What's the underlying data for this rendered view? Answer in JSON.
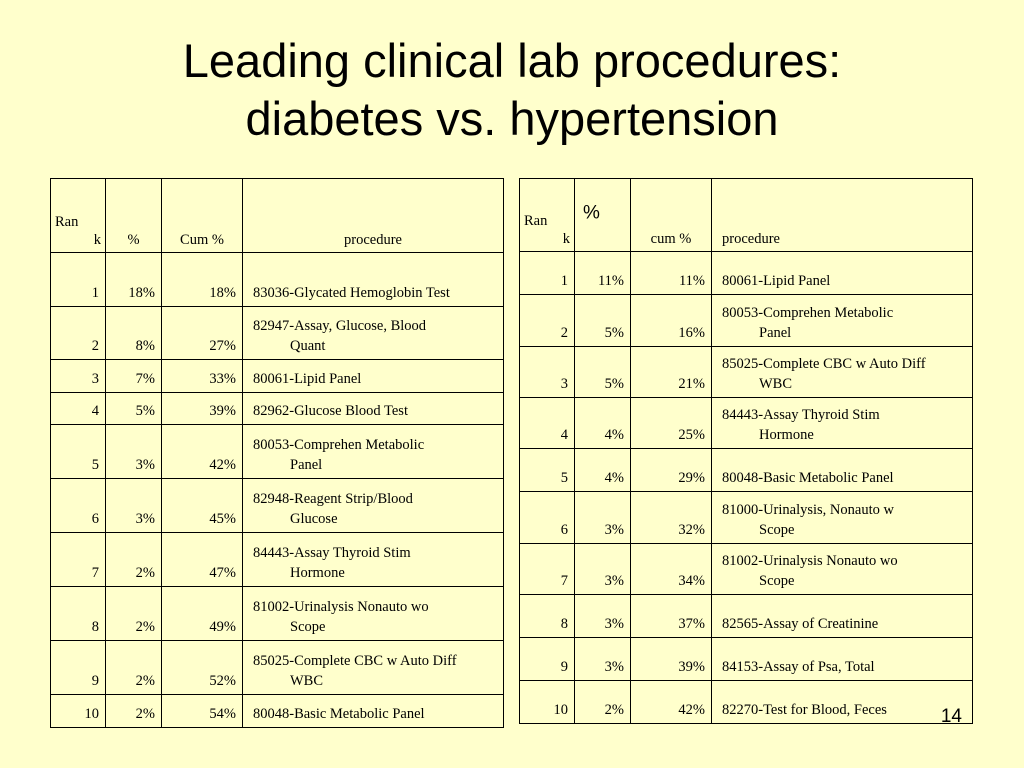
{
  "title": {
    "line1": "Leading clinical lab procedures:",
    "line2": "diabetes vs. hypertension"
  },
  "diabetes_table": {
    "headers": {
      "rank_a": "Ran",
      "rank_b": "k",
      "pct": "%",
      "cum": "Cum %",
      "procedure": "procedure"
    },
    "rows": [
      {
        "rank": "1",
        "pct": "18%",
        "cum": "18%",
        "proc1": "83036-Glycated Hemoglobin Test",
        "proc2": ""
      },
      {
        "rank": "2",
        "pct": "8%",
        "cum": "27%",
        "proc1": "82947-Assay, Glucose, Blood",
        "proc2": "Quant"
      },
      {
        "rank": "3",
        "pct": "7%",
        "cum": "33%",
        "proc1": "80061-Lipid Panel",
        "proc2": ""
      },
      {
        "rank": "4",
        "pct": "5%",
        "cum": "39%",
        "proc1": "82962-Glucose Blood Test",
        "proc2": ""
      },
      {
        "rank": "5",
        "pct": "3%",
        "cum": "42%",
        "proc1": "80053-Comprehen Metabolic",
        "proc2": "Panel"
      },
      {
        "rank": "6",
        "pct": "3%",
        "cum": "45%",
        "proc1": "82948-Reagent Strip/Blood",
        "proc2": "Glucose"
      },
      {
        "rank": "7",
        "pct": "2%",
        "cum": "47%",
        "proc1": "84443-Assay Thyroid Stim",
        "proc2": "Hormone"
      },
      {
        "rank": "8",
        "pct": "2%",
        "cum": "49%",
        "proc1": "81002-Urinalysis Nonauto wo",
        "proc2": "Scope"
      },
      {
        "rank": "9",
        "pct": "2%",
        "cum": "52%",
        "proc1": "85025-Complete CBC w Auto Diff",
        "proc2": "WBC"
      },
      {
        "rank": "10",
        "pct": "2%",
        "cum": "54%",
        "proc1": "80048-Basic Metabolic Panel",
        "proc2": ""
      }
    ]
  },
  "hypertension_table": {
    "headers": {
      "rank_a": "Ran",
      "rank_b": "k",
      "pct": "%",
      "cum": "cum %",
      "procedure": "procedure"
    },
    "rows": [
      {
        "rank": "1",
        "pct": "11%",
        "cum": "11%",
        "proc1": "80061-Lipid Panel",
        "proc2": ""
      },
      {
        "rank": "2",
        "pct": "5%",
        "cum": "16%",
        "proc1": "80053-Comprehen Metabolic",
        "proc2": "Panel"
      },
      {
        "rank": "3",
        "pct": "5%",
        "cum": "21%",
        "proc1": "85025-Complete CBC w Auto Diff",
        "proc2": "WBC"
      },
      {
        "rank": "4",
        "pct": "4%",
        "cum": "25%",
        "proc1": "84443-Assay Thyroid Stim",
        "proc2": "Hormone"
      },
      {
        "rank": "5",
        "pct": "4%",
        "cum": "29%",
        "proc1": "80048-Basic Metabolic Panel",
        "proc2": ""
      },
      {
        "rank": "6",
        "pct": "3%",
        "cum": "32%",
        "proc1": "81000-Urinalysis, Nonauto w",
        "proc2": "Scope"
      },
      {
        "rank": "7",
        "pct": "3%",
        "cum": "34%",
        "proc1": "81002-Urinalysis Nonauto wo",
        "proc2": "Scope"
      },
      {
        "rank": "8",
        "pct": "3%",
        "cum": "37%",
        "proc1": "82565-Assay of Creatinine",
        "proc2": ""
      },
      {
        "rank": "9",
        "pct": "3%",
        "cum": "39%",
        "proc1": "84153-Assay of Psa, Total",
        "proc2": ""
      },
      {
        "rank": "10",
        "pct": "2%",
        "cum": "42%",
        "proc1": "82270-Test for Blood, Feces",
        "proc2": ""
      }
    ]
  },
  "slide_number": "14"
}
